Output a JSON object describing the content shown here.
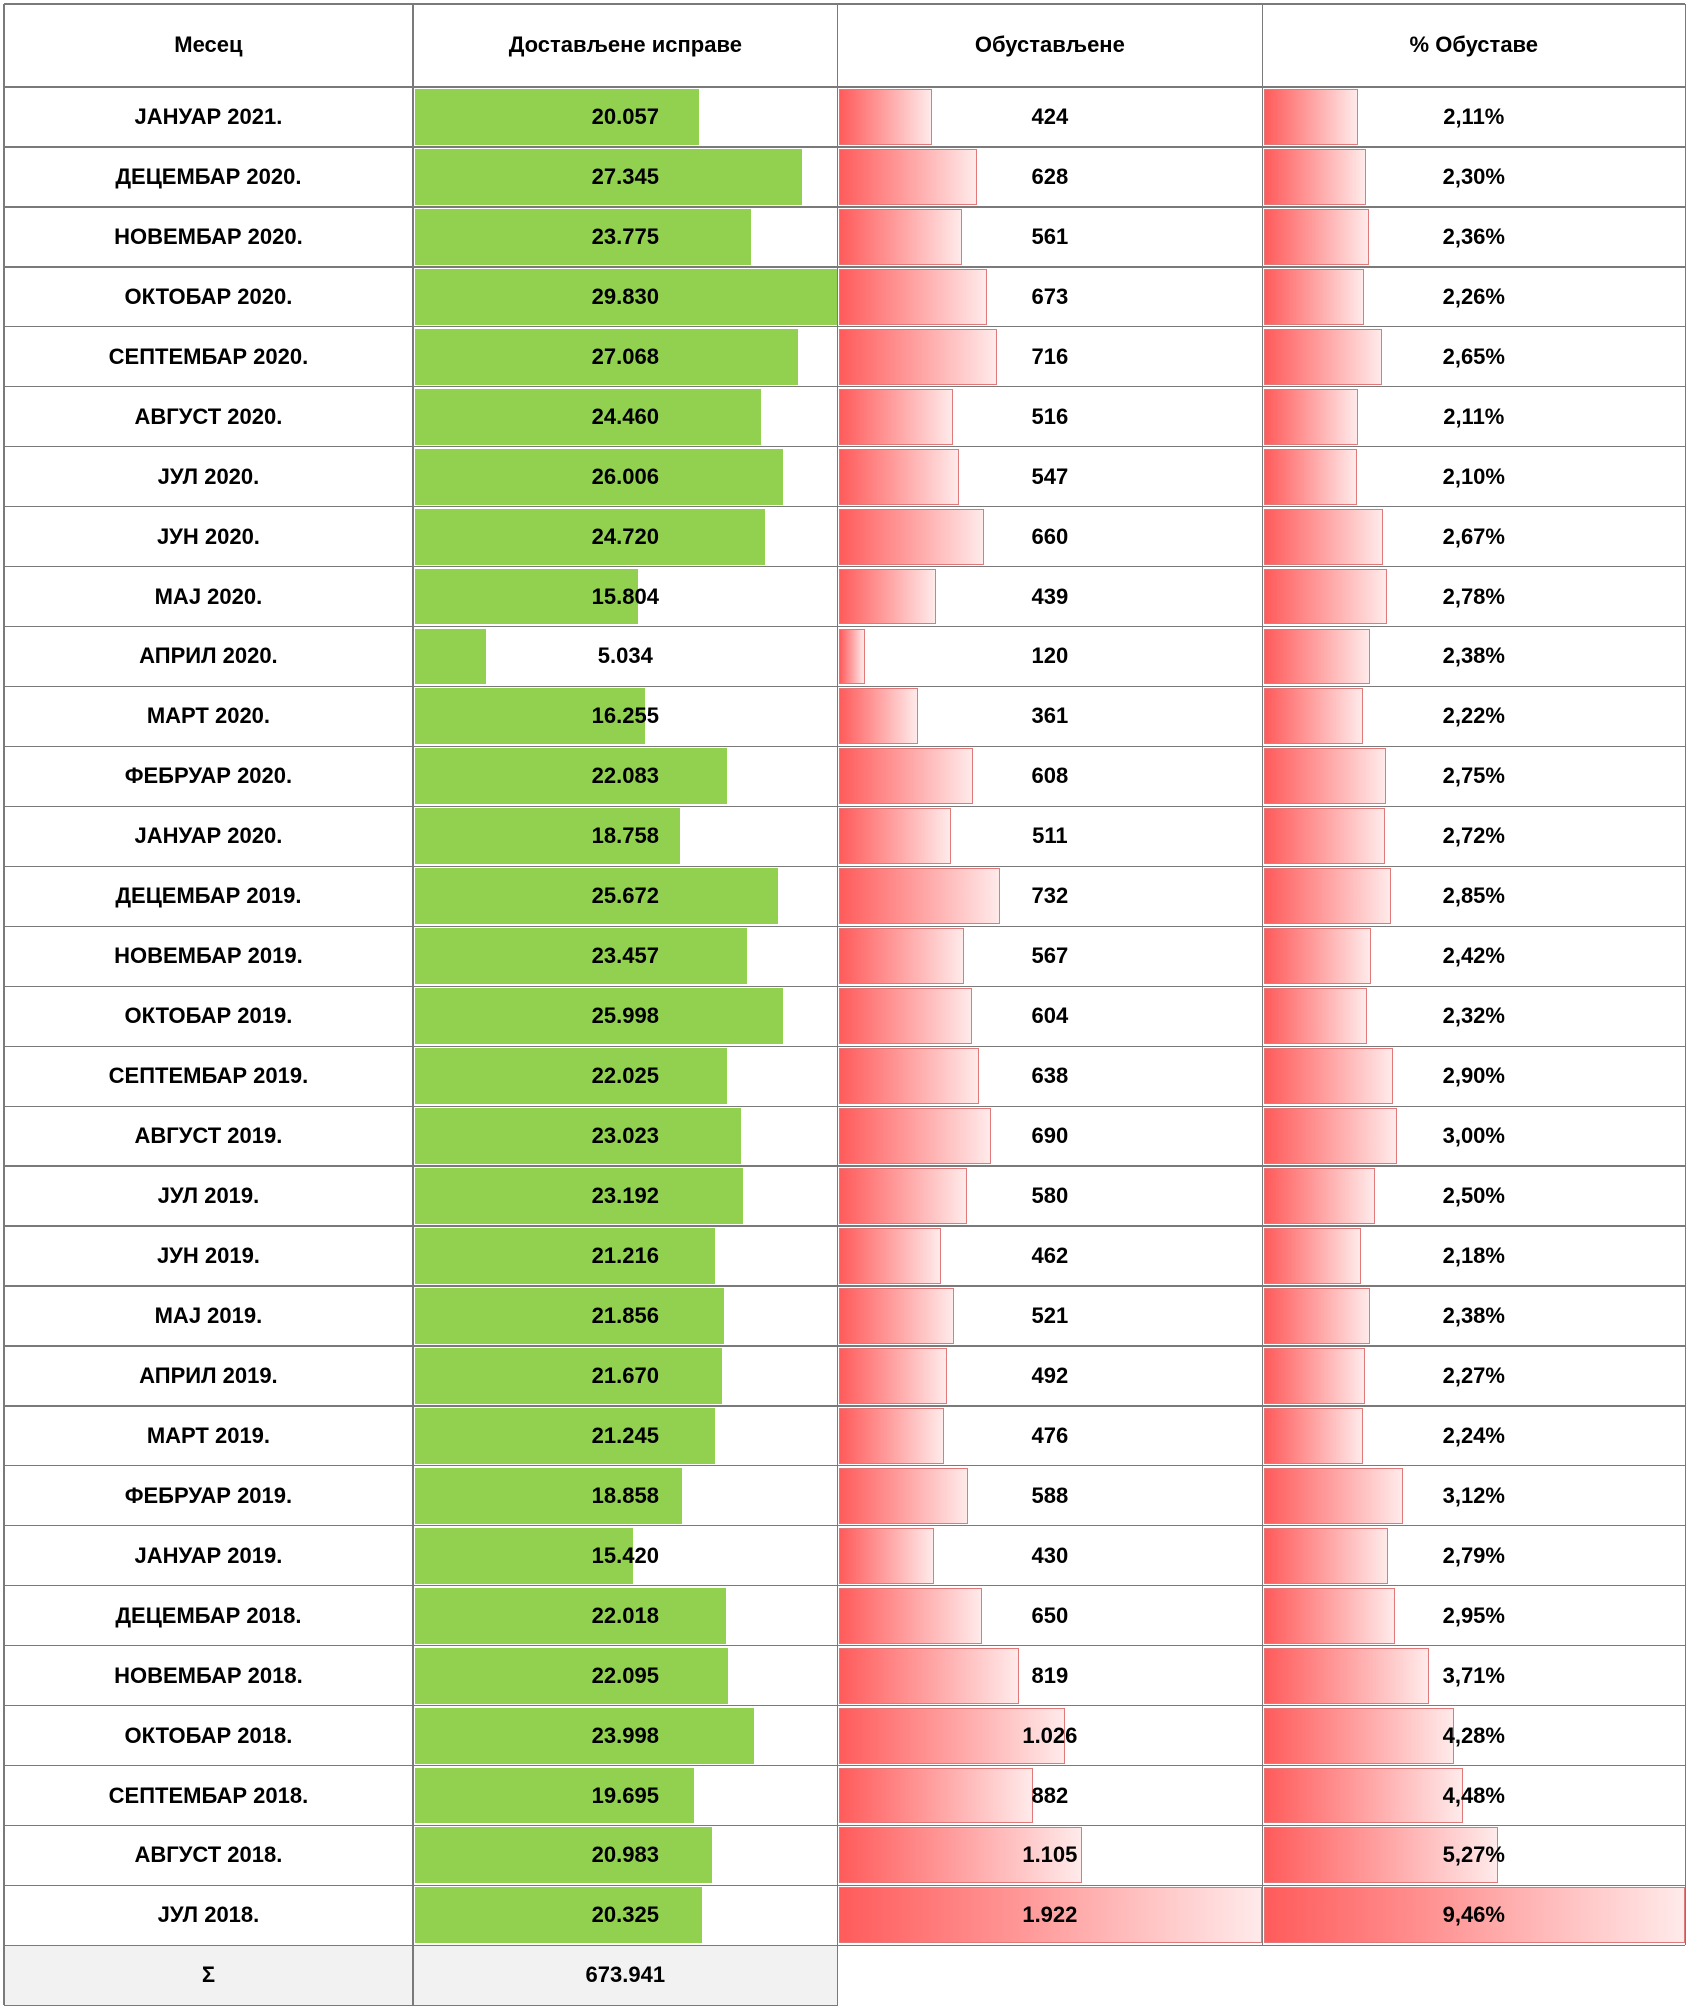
{
  "headers": {
    "month": "Месец",
    "delivered": "Достављене исправе",
    "suspended": "Обустављене",
    "percent": "% Обуставе"
  },
  "rows": [
    {
      "month": "ЈАНУАР 2021.",
      "delivered": "20.057",
      "suspended": "424",
      "percent": "2,11%",
      "delivered_n": 20057,
      "suspended_n": 424,
      "percent_n": 2.11
    },
    {
      "month": "ДЕЦЕМБАР 2020.",
      "delivered": "27.345",
      "suspended": "628",
      "percent": "2,30%",
      "delivered_n": 27345,
      "suspended_n": 628,
      "percent_n": 2.3
    },
    {
      "month": "НОВЕМБАР 2020.",
      "delivered": "23.775",
      "suspended": "561",
      "percent": "2,36%",
      "delivered_n": 23775,
      "suspended_n": 561,
      "percent_n": 2.36
    },
    {
      "month": "ОКТОБАР 2020.",
      "delivered": "29.830",
      "suspended": "673",
      "percent": "2,26%",
      "delivered_n": 29830,
      "suspended_n": 673,
      "percent_n": 2.26
    },
    {
      "month": "СЕПТЕМБАР 2020.",
      "delivered": "27.068",
      "suspended": "716",
      "percent": "2,65%",
      "delivered_n": 27068,
      "suspended_n": 716,
      "percent_n": 2.65
    },
    {
      "month": "АВГУСТ 2020.",
      "delivered": "24.460",
      "suspended": "516",
      "percent": "2,11%",
      "delivered_n": 24460,
      "suspended_n": 516,
      "percent_n": 2.11
    },
    {
      "month": "ЈУЛ 2020.",
      "delivered": "26.006",
      "suspended": "547",
      "percent": "2,10%",
      "delivered_n": 26006,
      "suspended_n": 547,
      "percent_n": 2.1
    },
    {
      "month": "ЈУН 2020.",
      "delivered": "24.720",
      "suspended": "660",
      "percent": "2,67%",
      "delivered_n": 24720,
      "suspended_n": 660,
      "percent_n": 2.67
    },
    {
      "month": "МАЈ 2020.",
      "delivered": "15.804",
      "suspended": "439",
      "percent": "2,78%",
      "delivered_n": 15804,
      "suspended_n": 439,
      "percent_n": 2.78
    },
    {
      "month": "АПРИЛ 2020.",
      "delivered": "5.034",
      "suspended": "120",
      "percent": "2,38%",
      "delivered_n": 5034,
      "suspended_n": 120,
      "percent_n": 2.38
    },
    {
      "month": "МАРТ 2020.",
      "delivered": "16.255",
      "suspended": "361",
      "percent": "2,22%",
      "delivered_n": 16255,
      "suspended_n": 361,
      "percent_n": 2.22
    },
    {
      "month": "ФЕБРУАР 2020.",
      "delivered": "22.083",
      "suspended": "608",
      "percent": "2,75%",
      "delivered_n": 22083,
      "suspended_n": 608,
      "percent_n": 2.75
    },
    {
      "month": "ЈАНУАР 2020.",
      "delivered": "18.758",
      "suspended": "511",
      "percent": "2,72%",
      "delivered_n": 18758,
      "suspended_n": 511,
      "percent_n": 2.72
    },
    {
      "month": "ДЕЦЕМБАР 2019.",
      "delivered": "25.672",
      "suspended": "732",
      "percent": "2,85%",
      "delivered_n": 25672,
      "suspended_n": 732,
      "percent_n": 2.85
    },
    {
      "month": "НОВЕМБАР 2019.",
      "delivered": "23.457",
      "suspended": "567",
      "percent": "2,42%",
      "delivered_n": 23457,
      "suspended_n": 567,
      "percent_n": 2.42
    },
    {
      "month": "ОКТОБАР 2019.",
      "delivered": "25.998",
      "suspended": "604",
      "percent": "2,32%",
      "delivered_n": 25998,
      "suspended_n": 604,
      "percent_n": 2.32
    },
    {
      "month": "СЕПТЕМБАР 2019.",
      "delivered": "22.025",
      "suspended": "638",
      "percent": "2,90%",
      "delivered_n": 22025,
      "suspended_n": 638,
      "percent_n": 2.9
    },
    {
      "month": "АВГУСТ 2019.",
      "delivered": "23.023",
      "suspended": "690",
      "percent": "3,00%",
      "delivered_n": 23023,
      "suspended_n": 690,
      "percent_n": 3.0
    },
    {
      "month": "ЈУЛ 2019.",
      "delivered": "23.192",
      "suspended": "580",
      "percent": "2,50%",
      "delivered_n": 23192,
      "suspended_n": 580,
      "percent_n": 2.5
    },
    {
      "month": "ЈУН 2019.",
      "delivered": "21.216",
      "suspended": "462",
      "percent": "2,18%",
      "delivered_n": 21216,
      "suspended_n": 462,
      "percent_n": 2.18
    },
    {
      "month": "МАЈ 2019.",
      "delivered": "21.856",
      "suspended": "521",
      "percent": "2,38%",
      "delivered_n": 21856,
      "suspended_n": 521,
      "percent_n": 2.38
    },
    {
      "month": "АПРИЛ 2019.",
      "delivered": "21.670",
      "suspended": "492",
      "percent": "2,27%",
      "delivered_n": 21670,
      "suspended_n": 492,
      "percent_n": 2.27
    },
    {
      "month": "МАРТ 2019.",
      "delivered": "21.245",
      "suspended": "476",
      "percent": "2,24%",
      "delivered_n": 21245,
      "suspended_n": 476,
      "percent_n": 2.24
    },
    {
      "month": "ФЕБРУАР 2019.",
      "delivered": "18.858",
      "suspended": "588",
      "percent": "3,12%",
      "delivered_n": 18858,
      "suspended_n": 588,
      "percent_n": 3.12
    },
    {
      "month": "ЈАНУАР 2019.",
      "delivered": "15.420",
      "suspended": "430",
      "percent": "2,79%",
      "delivered_n": 15420,
      "suspended_n": 430,
      "percent_n": 2.79
    },
    {
      "month": "ДЕЦЕМБАР 2018.",
      "delivered": "22.018",
      "suspended": "650",
      "percent": "2,95%",
      "delivered_n": 22018,
      "suspended_n": 650,
      "percent_n": 2.95
    },
    {
      "month": "НОВЕМБАР 2018.",
      "delivered": "22.095",
      "suspended": "819",
      "percent": "3,71%",
      "delivered_n": 22095,
      "suspended_n": 819,
      "percent_n": 3.71
    },
    {
      "month": "ОКТОБАР 2018.",
      "delivered": "23.998",
      "suspended": "1.026",
      "percent": "4,28%",
      "delivered_n": 23998,
      "suspended_n": 1026,
      "percent_n": 4.28
    },
    {
      "month": "СЕПТЕМБАР 2018.",
      "delivered": "19.695",
      "suspended": "882",
      "percent": "4,48%",
      "delivered_n": 19695,
      "suspended_n": 882,
      "percent_n": 4.48
    },
    {
      "month": "АВГУСТ 2018.",
      "delivered": "20.983",
      "suspended": "1.105",
      "percent": "5,27%",
      "delivered_n": 20983,
      "suspended_n": 1105,
      "percent_n": 5.27
    },
    {
      "month": "ЈУЛ 2018.",
      "delivered": "20.325",
      "suspended": "1.922",
      "percent": "9,46%",
      "delivered_n": 20325,
      "suspended_n": 1922,
      "percent_n": 9.46
    }
  ],
  "summary": {
    "label": "Σ",
    "delivered": "673.941"
  },
  "colors": {
    "delivered_bar": "#92d050",
    "suspended_bar": "#ff5b5b",
    "grid": "#7a7a7a",
    "summary_bg": "#f2f2f2"
  }
}
